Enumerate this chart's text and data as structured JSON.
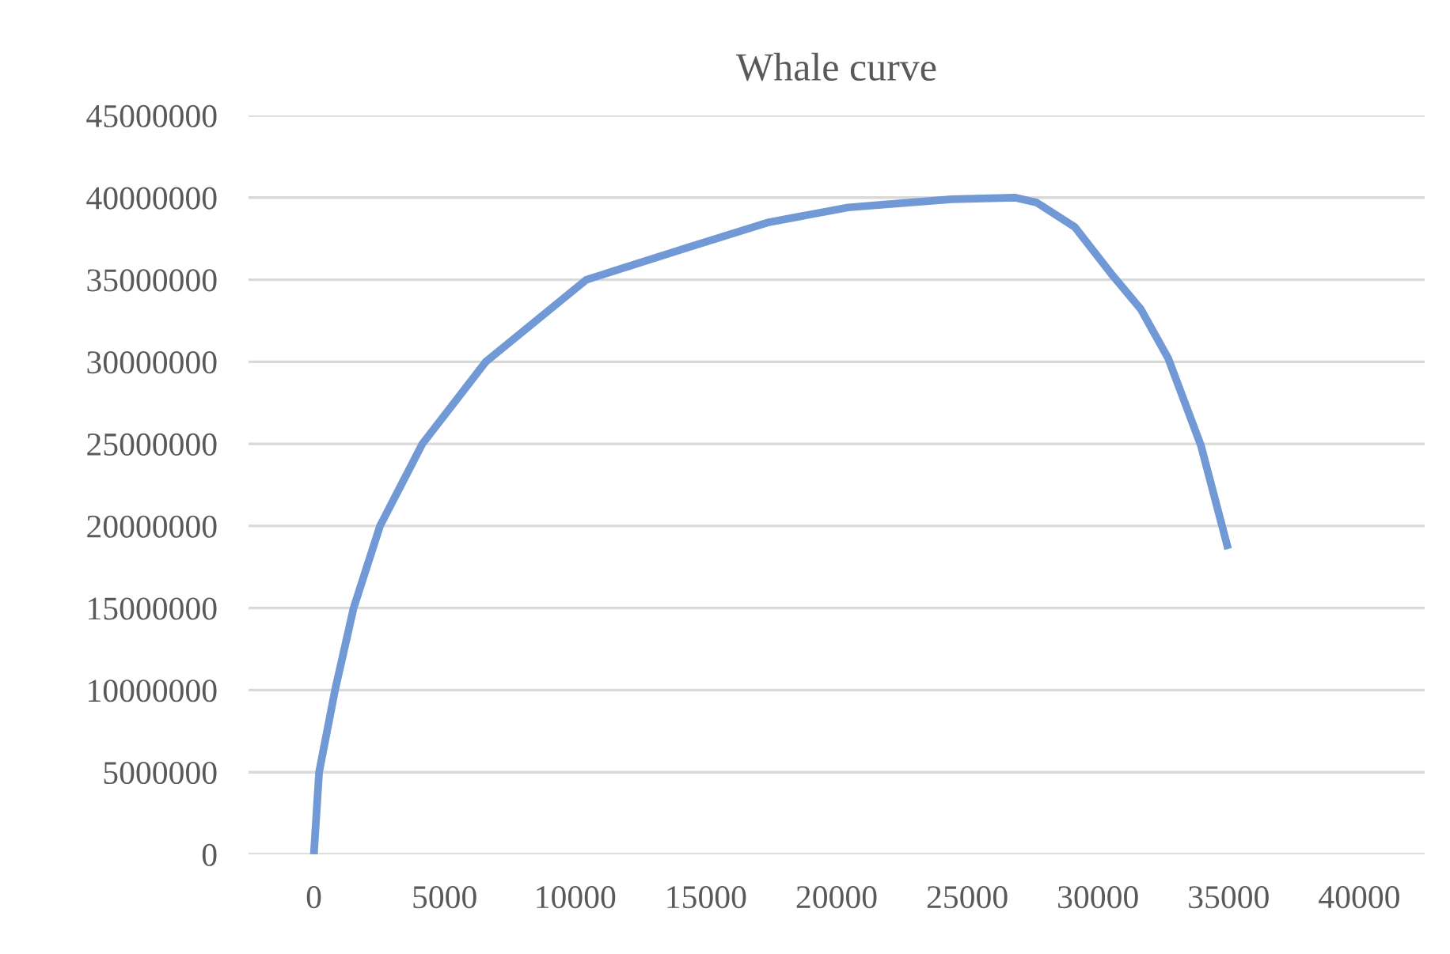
{
  "chart_data": {
    "type": "line",
    "title": "Whale curve",
    "x": [
      0,
      200,
      810,
      1520,
      2530,
      4150,
      6580,
      10430,
      14380,
      17410,
      20440,
      24400,
      26820,
      27650,
      29120,
      30590,
      31640,
      32690,
      33940,
      34980
    ],
    "series": [
      {
        "color": "#7099d6",
        "values": [
          0,
          5000000,
          10000000,
          15000000,
          20000000,
          25000000,
          30000000,
          35000000,
          37000000,
          38500000,
          39400000,
          39900000,
          40000000,
          39700000,
          38200000,
          35200000,
          33200000,
          30200000,
          24900000,
          18600000
        ]
      }
    ],
    "xlim": [
      -2500,
      42500
    ],
    "xticks": [
      0,
      5000,
      10000,
      15000,
      20000,
      25000,
      30000,
      35000,
      40000
    ],
    "ylim": [
      0,
      45000000
    ],
    "yticks": [
      0,
      5000000,
      10000000,
      15000000,
      20000000,
      25000000,
      30000000,
      35000000,
      40000000,
      45000000
    ],
    "grid": "y",
    "marker": "none",
    "line_style": "solid",
    "legend": false
  }
}
